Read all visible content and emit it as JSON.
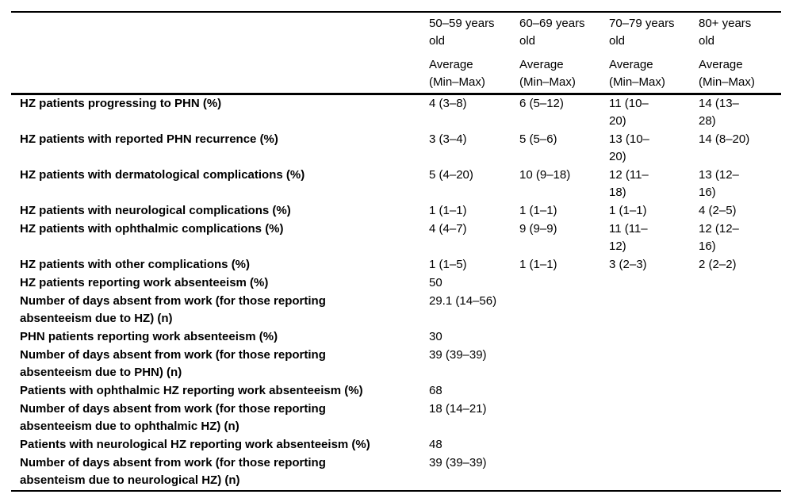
{
  "table": {
    "columns": [
      {
        "age": "50–59 years\nold",
        "sub": "Average\n(Min–Max)"
      },
      {
        "age": "60–69 years\nold",
        "sub": "Average\n(Min–Max)"
      },
      {
        "age": "70–79 years\nold",
        "sub": "Average\n(Min–Max)"
      },
      {
        "age": "80+ years\nold",
        "sub": "Average\n(Min–Max)"
      }
    ],
    "rows": [
      {
        "label": "HZ patients progressing to PHN (%)",
        "values": [
          "4 (3–8)",
          "6 (5–12)",
          "11 (10–\n20)",
          "14 (13–\n28)"
        ]
      },
      {
        "label": "HZ patients with reported PHN recurrence (%)",
        "values": [
          "3 (3–4)",
          "5 (5–6)",
          "13 (10–\n20)",
          "14 (8–20)"
        ]
      },
      {
        "label": "HZ patients with dermatological complications (%)",
        "values": [
          "5 (4–20)",
          "10 (9–18)",
          "12 (11–\n18)",
          "13 (12–\n16)"
        ]
      },
      {
        "label": "HZ patients with neurological complications (%)",
        "values": [
          "1 (1–1)",
          "1 (1–1)",
          "1 (1–1)",
          "4 (2–5)"
        ]
      },
      {
        "label": "HZ patients with ophthalmic complications (%)",
        "values": [
          "4 (4–7)",
          "9 (9–9)",
          "11 (11–\n12)",
          "12 (12–\n16)"
        ]
      },
      {
        "label": "HZ patients with other complications (%)",
        "values": [
          "1 (1–5)",
          "1 (1–1)",
          "3 (2–3)",
          "2 (2–2)"
        ]
      },
      {
        "label": "HZ patients reporting work absenteeism (%)",
        "values": [
          "50",
          "",
          "",
          ""
        ]
      },
      {
        "label": "Number of days absent from work (for those reporting\nabsenteeism due to HZ) (n)",
        "values": [
          "29.1 (14–56)",
          "",
          "",
          ""
        ]
      },
      {
        "label": "PHN patients reporting work absenteeism (%)",
        "values": [
          "30",
          "",
          "",
          ""
        ]
      },
      {
        "label": "Number of days absent from work (for those reporting\nabsenteeism due to PHN) (n)",
        "values": [
          "39 (39–39)",
          "",
          "",
          ""
        ]
      },
      {
        "label": "Patients with ophthalmic HZ reporting work absenteeism (%)",
        "values": [
          "68",
          "",
          "",
          ""
        ]
      },
      {
        "label": "Number of days absent from work (for those reporting\nabsenteeism due to ophthalmic HZ) (n)",
        "values": [
          "18 (14–21)",
          "",
          "",
          ""
        ]
      },
      {
        "label": "Patients with neurological HZ reporting work absenteeism (%)",
        "values": [
          "48",
          "",
          "",
          ""
        ]
      },
      {
        "label": "Number of days absent from work (for those reporting\nabsenteism due to neurological HZ) (n)",
        "values": [
          "39 (39–39)",
          "",
          "",
          ""
        ]
      }
    ]
  }
}
